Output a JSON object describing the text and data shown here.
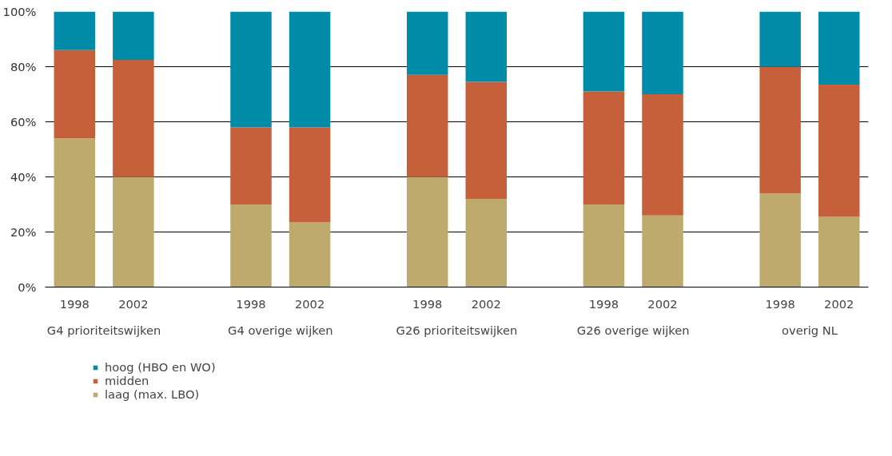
{
  "chart_data": {
    "type": "bar",
    "stacked": true,
    "categories": [
      "1998",
      "2002",
      "1998",
      "2002",
      "1998",
      "2002",
      "1998",
      "2002",
      "1998",
      "2002"
    ],
    "series": [
      {
        "name": "laag (max. LBO)",
        "color": "#bfaa6e",
        "values": [
          54,
          40,
          30,
          23.5,
          40,
          32,
          30,
          26,
          34,
          25.5
        ]
      },
      {
        "name": "midden",
        "color": "#c5603a",
        "values": [
          32,
          42.5,
          28,
          34.5,
          37,
          42.5,
          41,
          44,
          46,
          48
        ]
      },
      {
        "name": "hoog (HBO en WO)",
        "color": "#008ba8",
        "values": [
          14,
          17.5,
          42,
          42,
          23,
          25.5,
          29,
          30,
          20,
          26.5
        ]
      }
    ],
    "annotations": [
      "G4 prioriteitswijken",
      "G4 overige wijken",
      "G26 prioriteitswijken",
      "G26 overige wijken",
      "overig NL"
    ],
    "ylim": [
      0,
      100
    ],
    "yticks": [
      {
        "value": 0,
        "label": "0%"
      },
      {
        "value": 20,
        "label": "20%"
      },
      {
        "value": 40,
        "label": "40%"
      },
      {
        "value": 60,
        "label": "60%"
      },
      {
        "value": 80,
        "label": "80%"
      },
      {
        "value": 100,
        "label": "100%"
      }
    ],
    "grid": "y",
    "legend": "bottom left"
  }
}
